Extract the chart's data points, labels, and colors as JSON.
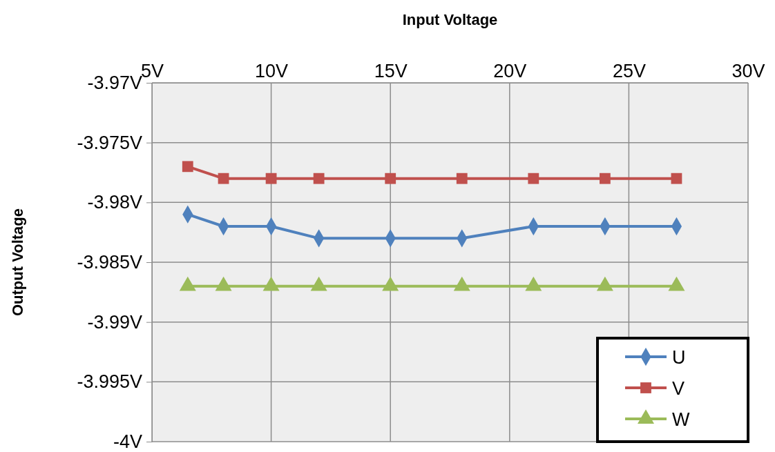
{
  "chart_data": {
    "type": "line",
    "xlabel": "Input Voltage",
    "ylabel": "Output Voltage",
    "xlim": [
      5,
      30
    ],
    "xticks": [
      {
        "value": 5,
        "label": "5V"
      },
      {
        "value": 10,
        "label": "10V"
      },
      {
        "value": 15,
        "label": "15V"
      },
      {
        "value": 20,
        "label": "20V"
      },
      {
        "value": 25,
        "label": "25V"
      },
      {
        "value": 30,
        "label": "30V"
      }
    ],
    "ylim": [
      -4,
      -3.97
    ],
    "yticks": [
      {
        "value": -4,
        "label": "-4V"
      },
      {
        "value": -3.995,
        "label": "-3.995V"
      },
      {
        "value": -3.99,
        "label": "-3.99V"
      },
      {
        "value": -3.985,
        "label": "-3.985V"
      },
      {
        "value": -3.98,
        "label": "-3.98V"
      },
      {
        "value": -3.975,
        "label": "-3.975V"
      },
      {
        "value": -3.97,
        "label": "-3.97V"
      }
    ],
    "x": [
      6.5,
      8,
      10,
      12,
      15,
      18,
      21,
      24,
      27
    ],
    "grid": true,
    "legend": "bottom right",
    "line_style": "solid",
    "series": [
      {
        "name": "U",
        "color": "#4f81bd",
        "marker": "diamond",
        "values": [
          -3.981,
          -3.982,
          -3.982,
          -3.983,
          -3.983,
          -3.983,
          -3.982,
          -3.982,
          -3.982
        ]
      },
      {
        "name": "V",
        "color": "#c0504d",
        "marker": "square",
        "values": [
          -3.977,
          -3.978,
          -3.978,
          -3.978,
          -3.978,
          -3.978,
          -3.978,
          -3.978,
          -3.978
        ]
      },
      {
        "name": "W",
        "color": "#9bbb59",
        "marker": "triangle",
        "values": [
          -3.987,
          -3.987,
          -3.987,
          -3.987,
          -3.987,
          -3.987,
          -3.987,
          -3.987,
          -3.987
        ]
      }
    ]
  }
}
